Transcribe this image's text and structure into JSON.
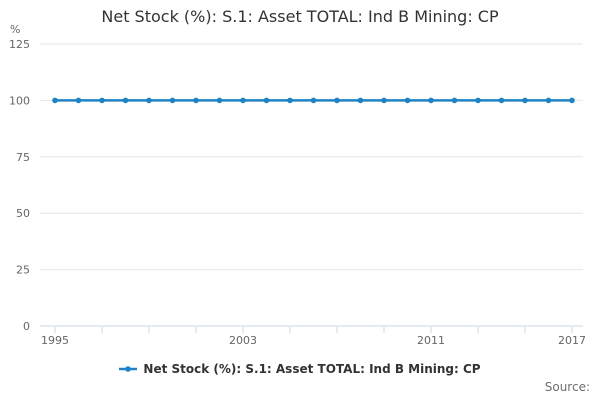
{
  "title": "Net Stock (%): S.1: Asset TOTAL: Ind B Mining: CP",
  "legend": {
    "label": "Net Stock (%): S.1: Asset TOTAL: Ind B Mining: CP"
  },
  "source": "Source:",
  "colors": {
    "series": "#1f82c4",
    "grid": "#e6e6e6",
    "axis": "#ccd6eb",
    "label": "#666666",
    "title": "#333333",
    "legend_text": "#333333",
    "source_text": "#6e6e6e"
  },
  "chart_data": {
    "type": "line",
    "title": "Net Stock (%): S.1: Asset TOTAL: Ind B Mining: CP",
    "xlabel": "",
    "ylabel": "%",
    "x": [
      1995,
      1996,
      1997,
      1998,
      1999,
      2000,
      2001,
      2002,
      2003,
      2004,
      2005,
      2006,
      2007,
      2008,
      2009,
      2010,
      2011,
      2012,
      2013,
      2014,
      2015,
      2016,
      2017
    ],
    "series": [
      {
        "name": "Net Stock (%): S.1: Asset TOTAL: Ind B Mining: CP",
        "values": [
          100,
          100,
          100,
          100,
          100,
          100,
          100,
          100,
          100,
          100,
          100,
          100,
          100,
          100,
          100,
          100,
          100,
          100,
          100,
          100,
          100,
          100,
          100
        ]
      }
    ],
    "ylim": [
      0,
      125
    ],
    "yticks": [
      0,
      25,
      50,
      75,
      100,
      125
    ],
    "xtick_minor_every_years": 2,
    "xtick_labels": [
      1995,
      2003,
      2011,
      2017
    ],
    "grid": true,
    "legend_position": "bottom",
    "marker": "circle"
  }
}
